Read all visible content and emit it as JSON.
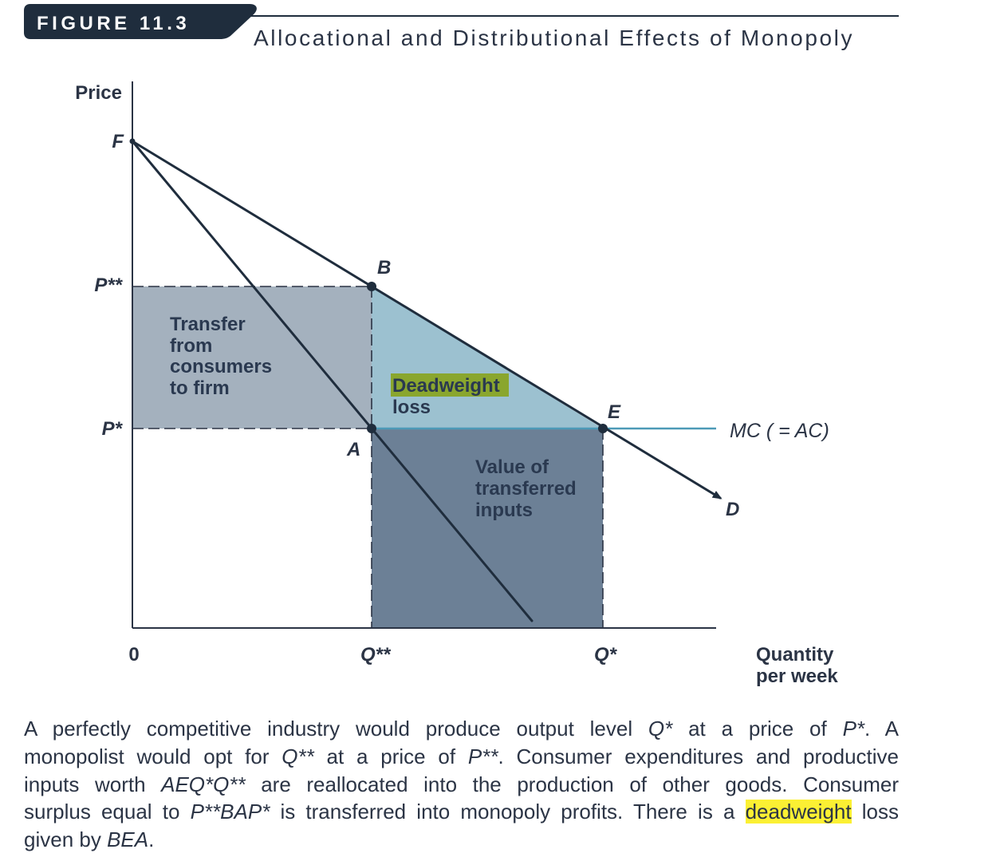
{
  "figure": {
    "number": "FIGURE 11.3",
    "title": "Allocational and Distributional Effects of Monopoly"
  },
  "axes": {
    "y_label": "Price",
    "x_label": [
      "Quantity",
      "per week"
    ],
    "origin": "0"
  },
  "price_ticks": {
    "p_double_star": "P**",
    "p_star": "P*"
  },
  "quantity_ticks": {
    "q_double_star": "Q**",
    "q_star": "Q*"
  },
  "points": {
    "f": "F",
    "b": "B",
    "a": "A",
    "e": "E"
  },
  "curves": {
    "demand": "D",
    "marginal_cost": "MC ( = AC)"
  },
  "regions": {
    "transfer": [
      "Transfer",
      "from",
      "consumers",
      "to firm"
    ],
    "deadweight_loss": [
      "Deadweight",
      "loss"
    ],
    "transferred_inputs": [
      "Value of",
      "transferred",
      "inputs"
    ]
  },
  "caption": {
    "lines": [
      [
        "A perfectly competitive industry would produce output level ",
        "Q*",
        " at a price of ",
        "P*",
        ". A"
      ],
      [
        "monopolist would opt for ",
        "Q**",
        " at a price of ",
        "P**",
        ". Consumer expenditures and productive"
      ],
      [
        "inputs worth ",
        "AEQ*Q**",
        " are reallocated into the production of other goods. Consumer"
      ],
      [
        "surplus equal to ",
        "P**BAP*",
        " is transferred into monopoly profits. There is a ",
        "deadweight",
        " loss"
      ],
      [
        "given by ",
        "BEA",
        "."
      ]
    ]
  },
  "colors": {
    "navy": "#1f2d3d",
    "text": "#2b3445",
    "region_text": "#2a3950",
    "mc_line": "#4d9ab7",
    "transfer_fill": "#a4b1be",
    "deadweight_fill": "#9cc1d0",
    "inputs_fill": "#6c8096",
    "deadweight_label_highlight": "#8aa62e",
    "caption_highlight": "#fbf033"
  }
}
